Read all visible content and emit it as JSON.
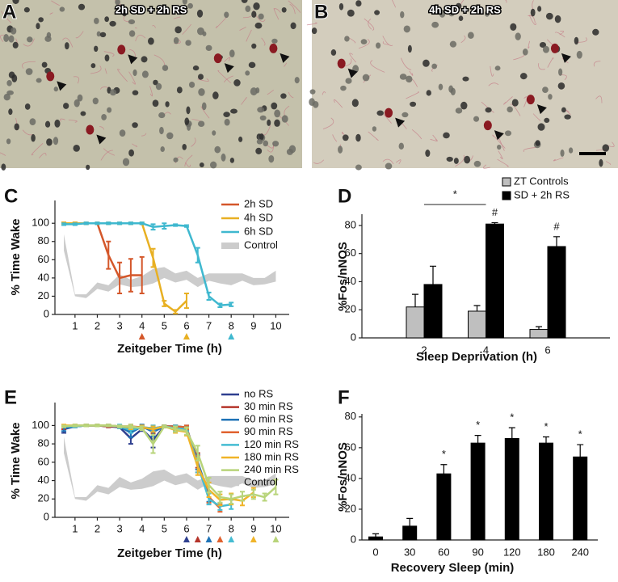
{
  "panels": [
    {
      "letter": "A",
      "caption": "2h SD + 2h RS"
    },
    {
      "letter": "B",
      "caption": "4h SD + 2h RS"
    }
  ],
  "chart_data": [
    {
      "type": "line",
      "panel": "C",
      "x_label": "Zeitgeber Time (h)",
      "y_label": "% Time Wake",
      "x": [
        0.5,
        1,
        1.5,
        2,
        2.5,
        3,
        3.5,
        4,
        4.5,
        5,
        5.5,
        6,
        6.5,
        7,
        7.5,
        8,
        8.5,
        9,
        9.5,
        10
      ],
      "xlim": [
        0.1,
        10.6
      ],
      "xticks": [
        1,
        2,
        3,
        4,
        5,
        6,
        7,
        8,
        9,
        10
      ],
      "ylim": [
        0,
        125
      ],
      "yticks": [
        0,
        20,
        40,
        60,
        80,
        100
      ],
      "series": [
        {
          "name": "2h SD",
          "color": "#d4572a",
          "values": [
            100,
            100,
            100,
            100,
            65,
            40,
            43,
            43,
            null,
            null,
            null,
            null,
            null,
            null,
            null,
            null,
            null,
            null,
            null,
            null
          ],
          "errors": [
            1,
            1,
            1,
            1,
            15,
            17,
            18,
            20,
            null,
            null,
            null,
            null,
            null,
            null,
            null,
            null,
            null,
            null,
            null,
            null
          ]
        },
        {
          "name": "4h SD",
          "color": "#e8b023",
          "values": [
            100,
            100,
            100,
            100,
            100,
            100,
            100,
            100,
            62,
            12,
            3,
            15,
            null,
            null,
            null,
            null,
            null,
            null,
            null,
            null
          ],
          "errors": [
            1,
            1,
            1,
            1,
            1,
            1,
            1,
            1,
            10,
            3,
            2,
            8,
            null,
            null,
            null,
            null,
            null,
            null,
            null,
            null
          ]
        },
        {
          "name": "6h SD",
          "color": "#3fb8cf",
          "values": [
            99,
            99,
            100,
            100,
            100,
            100,
            100,
            100,
            96,
            97,
            98,
            97,
            65,
            20,
            10,
            11,
            null,
            null,
            null,
            null
          ],
          "errors": [
            1,
            1,
            1,
            1,
            1,
            1,
            1,
            1,
            3,
            3,
            1,
            1,
            8,
            4,
            2,
            2,
            null,
            null,
            null,
            null
          ]
        },
        {
          "name": "Control",
          "color": "#cccccc",
          "lower": [
            70,
            20,
            18,
            28,
            25,
            33,
            30,
            31,
            34,
            40,
            35,
            38,
            30,
            37,
            34,
            32,
            37,
            32,
            33,
            36
          ],
          "upper": [
            88,
            22,
            22,
            35,
            32,
            44,
            38,
            42,
            50,
            52,
            45,
            48,
            40,
            45,
            45,
            45,
            45,
            40,
            40,
            48
          ]
        }
      ],
      "markers": [
        {
          "x": 4,
          "color": "#d4572a"
        },
        {
          "x": 6,
          "color": "#e8b023"
        },
        {
          "x": 8,
          "color": "#3fb8cf"
        }
      ]
    },
    {
      "type": "bar",
      "panel": "D",
      "x_label": "Sleep Deprivation (h)",
      "y_label": "%Fos/nNOS",
      "categories": [
        "2",
        "4",
        "6"
      ],
      "ylim": [
        0,
        88
      ],
      "yticks": [
        0,
        20,
        40,
        60,
        80
      ],
      "series": [
        {
          "name": "ZT Controls",
          "color": "#bfbfbf",
          "values": [
            22,
            19,
            6
          ],
          "errors": [
            9,
            4,
            2
          ]
        },
        {
          "name": "SD + 2h RS",
          "color": "#000000",
          "values": [
            38,
            81,
            65
          ],
          "errors": [
            13,
            1,
            7
          ]
        }
      ],
      "annotations": [
        {
          "from": "2",
          "to": "4",
          "text": "*"
        },
        {
          "category": "4",
          "series": "SD + 2h RS",
          "text": "#"
        },
        {
          "category": "6",
          "series": "SD + 2h RS",
          "text": "#"
        }
      ]
    },
    {
      "type": "line",
      "panel": "E",
      "x_label": "Zeitgeber Time (h)",
      "y_label": "% Time Wake",
      "x": [
        0.5,
        1,
        1.5,
        2,
        2.5,
        3,
        3.5,
        4,
        4.5,
        5,
        5.5,
        6,
        6.5,
        7,
        7.5,
        8,
        8.5,
        9,
        9.5,
        10
      ],
      "xlim": [
        0.1,
        10.6
      ],
      "xticks": [
        1,
        2,
        3,
        4,
        5,
        6,
        7,
        8,
        9,
        10
      ],
      "ylim": [
        0,
        125
      ],
      "yticks": [
        0,
        20,
        40,
        60,
        80,
        100
      ],
      "series": [
        {
          "name": "no RS",
          "color": "#2e3f8f",
          "values": [
            96,
            99,
            100,
            100,
            99,
            98,
            86,
            96,
            84,
            99,
            99,
            98,
            null,
            null,
            null,
            null,
            null,
            null,
            null,
            null
          ],
          "errors": [
            4,
            1,
            1,
            1,
            1,
            1,
            6,
            2,
            8,
            1,
            1,
            1,
            null,
            null,
            null,
            null,
            null,
            null,
            null,
            null
          ]
        },
        {
          "name": "30 min RS",
          "color": "#b5342a",
          "values": [
            98,
            99,
            100,
            100,
            99,
            99,
            97,
            98,
            95,
            99,
            98,
            97,
            62,
            null,
            null,
            null,
            null,
            null,
            null,
            null
          ],
          "errors": [
            2,
            1,
            1,
            1,
            1,
            1,
            3,
            2,
            4,
            1,
            2,
            2,
            8,
            null,
            null,
            null,
            null,
            null,
            null,
            null
          ]
        },
        {
          "name": "60 min RS",
          "color": "#1f73b7",
          "values": [
            97,
            99,
            100,
            100,
            100,
            99,
            92,
            99,
            93,
            99,
            99,
            98,
            60,
            25,
            null,
            null,
            null,
            null,
            null,
            null
          ],
          "errors": [
            3,
            1,
            1,
            1,
            1,
            1,
            5,
            2,
            5,
            1,
            1,
            2,
            8,
            8,
            null,
            null,
            null,
            null,
            null,
            null
          ]
        },
        {
          "name": "90 min RS",
          "color": "#e0622f",
          "values": [
            99,
            100,
            100,
            100,
            100,
            99,
            99,
            98,
            97,
            99,
            99,
            98,
            58,
            22,
            10,
            null,
            null,
            null,
            null,
            null
          ],
          "errors": [
            1,
            1,
            1,
            1,
            1,
            1,
            2,
            2,
            3,
            1,
            1,
            2,
            9,
            6,
            4,
            null,
            null,
            null,
            null,
            null
          ]
        },
        {
          "name": "120 min RS",
          "color": "#45bcd2",
          "values": [
            99,
            99,
            100,
            100,
            100,
            99,
            95,
            98,
            97,
            99,
            97,
            96,
            57,
            20,
            12,
            14,
            null,
            null,
            null,
            null
          ],
          "errors": [
            1,
            1,
            1,
            1,
            1,
            2,
            3,
            2,
            3,
            1,
            3,
            2,
            8,
            6,
            4,
            5,
            null,
            null,
            null,
            null
          ]
        },
        {
          "name": "180 min RS",
          "color": "#f0b428",
          "values": [
            100,
            100,
            100,
            100,
            100,
            99,
            98,
            98,
            96,
            99,
            95,
            93,
            55,
            30,
            19,
            20,
            18,
            27,
            null,
            null
          ],
          "errors": [
            1,
            1,
            1,
            1,
            1,
            1,
            2,
            2,
            3,
            1,
            3,
            4,
            9,
            8,
            6,
            6,
            5,
            5,
            null,
            null
          ]
        },
        {
          "name": "240 min RS",
          "color": "#b8d47a",
          "values": [
            99,
            100,
            100,
            100,
            100,
            99,
            99,
            97,
            80,
            99,
            96,
            94,
            70,
            35,
            22,
            20,
            23,
            25,
            22,
            33
          ],
          "errors": [
            1,
            1,
            1,
            1,
            1,
            1,
            2,
            2,
            10,
            1,
            3,
            4,
            8,
            8,
            6,
            5,
            5,
            5,
            4,
            8
          ]
        },
        {
          "name": "Control",
          "color": "#cccccc",
          "lower": [
            70,
            20,
            18,
            28,
            25,
            33,
            30,
            31,
            34,
            40,
            35,
            38,
            30,
            37,
            34,
            32,
            37,
            32,
            33,
            36
          ],
          "upper": [
            88,
            22,
            22,
            35,
            32,
            44,
            38,
            42,
            50,
            52,
            45,
            48,
            40,
            45,
            45,
            45,
            45,
            40,
            40,
            48
          ]
        }
      ],
      "markers": [
        {
          "x": 6,
          "color": "#2e3f8f"
        },
        {
          "x": 6.5,
          "color": "#b5342a"
        },
        {
          "x": 7,
          "color": "#1f73b7"
        },
        {
          "x": 7.5,
          "color": "#e0622f"
        },
        {
          "x": 8,
          "color": "#45bcd2"
        },
        {
          "x": 9,
          "color": "#f0b428"
        },
        {
          "x": 10,
          "color": "#b8d47a"
        }
      ]
    },
    {
      "type": "bar",
      "panel": "F",
      "x_label": "Recovery Sleep (min)",
      "y_label": "%Fos/nNOS",
      "categories": [
        "0",
        "30",
        "60",
        "90",
        "120",
        "180",
        "240"
      ],
      "values": [
        2,
        9,
        43,
        63,
        66,
        63,
        54
      ],
      "errors": [
        2,
        5,
        6,
        5,
        7,
        4,
        8
      ],
      "color": "#000000",
      "ylim": [
        0,
        82
      ],
      "yticks": [
        0,
        20,
        40,
        60,
        80
      ],
      "annotations": [
        {
          "category": "60",
          "text": "*"
        },
        {
          "category": "90",
          "text": "*"
        },
        {
          "category": "120",
          "text": "*"
        },
        {
          "category": "180",
          "text": "*"
        },
        {
          "category": "240",
          "text": "*"
        }
      ]
    }
  ]
}
